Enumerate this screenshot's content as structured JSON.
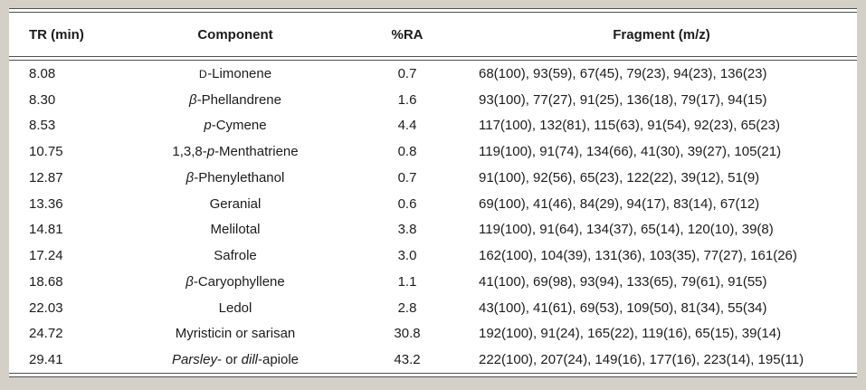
{
  "colors": {
    "page_background": "#d4d0c8",
    "table_background": "#ffffff",
    "rule": "#4f4f4f",
    "text": "#1c1c1c"
  },
  "table": {
    "columns": [
      "TR (min)",
      "Component",
      "%RA",
      "Fragment (m/z)"
    ],
    "rows": [
      {
        "tr": "8.08",
        "component": [
          {
            "text": "D",
            "smallcaps": true
          },
          {
            "text": "-Limonene"
          }
        ],
        "ra": "0.7",
        "fragments": "68(100), 93(59), 67(45), 79(23), 94(23), 136(23)"
      },
      {
        "tr": "8.30",
        "component": [
          {
            "text": "β",
            "italic": true
          },
          {
            "text": "-Phellandrene"
          }
        ],
        "ra": "1.6",
        "fragments": "93(100), 77(27), 91(25), 136(18), 79(17), 94(15)"
      },
      {
        "tr": "8.53",
        "component": [
          {
            "text": "p",
            "italic": true
          },
          {
            "text": "-Cymene"
          }
        ],
        "ra": "4.4",
        "fragments": "117(100), 132(81), 115(63), 91(54), 92(23), 65(23)"
      },
      {
        "tr": "10.75",
        "component": [
          {
            "text": "1,3,8-"
          },
          {
            "text": "p",
            "italic": true
          },
          {
            "text": "-Menthatriene"
          }
        ],
        "ra": "0.8",
        "fragments": "119(100), 91(74), 134(66), 41(30), 39(27), 105(21)"
      },
      {
        "tr": "12.87",
        "component": [
          {
            "text": "β",
            "italic": true
          },
          {
            "text": "-Phenylethanol"
          }
        ],
        "ra": "0.7",
        "fragments": "91(100), 92(56), 65(23), 122(22), 39(12), 51(9)"
      },
      {
        "tr": "13.36",
        "component": [
          {
            "text": "Geranial"
          }
        ],
        "ra": "0.6",
        "fragments": "69(100), 41(46), 84(29), 94(17), 83(14), 67(12)"
      },
      {
        "tr": "14.81",
        "component": [
          {
            "text": "Melilotal"
          }
        ],
        "ra": "3.8",
        "fragments": "119(100), 91(64), 134(37), 65(14), 120(10), 39(8)"
      },
      {
        "tr": "17.24",
        "component": [
          {
            "text": "Safrole"
          }
        ],
        "ra": "3.0",
        "fragments": "162(100), 104(39), 131(36), 103(35), 77(27), 161(26)"
      },
      {
        "tr": "18.68",
        "component": [
          {
            "text": "β",
            "italic": true
          },
          {
            "text": "-Caryophyllene"
          }
        ],
        "ra": "1.1",
        "fragments": "41(100), 69(98), 93(94), 133(65), 79(61), 91(55)"
      },
      {
        "tr": "22.03",
        "component": [
          {
            "text": "Ledol"
          }
        ],
        "ra": "2.8",
        "fragments": "43(100), 41(61), 69(53), 109(50), 81(34), 55(34)"
      },
      {
        "tr": "24.72",
        "component": [
          {
            "text": "Myristicin or sarisan"
          }
        ],
        "ra": "30.8",
        "fragments": "192(100), 91(24), 165(22), 119(16), 65(15), 39(14)"
      },
      {
        "tr": "29.41",
        "component": [
          {
            "text": "Parsley",
            "italic": true
          },
          {
            "text": "- or "
          },
          {
            "text": "dill",
            "italic": true
          },
          {
            "text": "-apiole"
          }
        ],
        "ra": "43.2",
        "fragments": "222(100), 207(24), 149(16), 177(16), 223(14), 195(11)"
      }
    ]
  }
}
